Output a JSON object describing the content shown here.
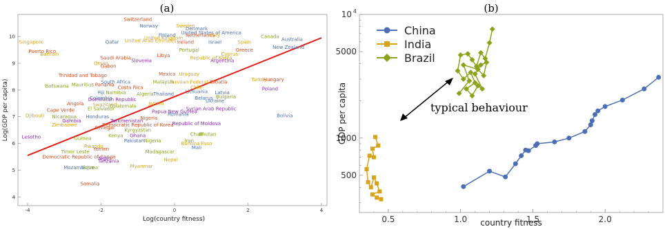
{
  "figure": {
    "label_a": "(a)",
    "label_b": "(b)"
  },
  "chart_data": [
    {
      "panel": "(a)",
      "type": "scatter",
      "xlabel": "Log(country fitness)",
      "ylabel": "Log(GDP per capita)",
      "xlim": [
        -4,
        4
      ],
      "ylim": [
        3.7,
        10.8
      ],
      "xticks": [
        -4,
        -2,
        0,
        2,
        4
      ],
      "yticks": [
        4,
        5,
        6,
        7,
        8,
        9,
        10
      ],
      "grid": false,
      "fit_line": {
        "color": "#e0201b",
        "x": [
          -4,
          4
        ],
        "y": [
          5.55,
          9.95
        ]
      },
      "points": [
        {
          "name": "Switzerland",
          "x": -1.0,
          "y": 10.65,
          "color": "#d84a1b"
        },
        {
          "name": "Norway",
          "x": -0.7,
          "y": 10.4,
          "color": "#4a6fb5"
        },
        {
          "name": "Sweden",
          "x": 0.3,
          "y": 10.4,
          "color": "#d8a31b"
        },
        {
          "name": "Denmark",
          "x": 0.6,
          "y": 10.3,
          "color": "#4a6fb5"
        },
        {
          "name": "United States of America",
          "x": 1.0,
          "y": 10.15,
          "color": "#4a6fb5"
        },
        {
          "name": "Netherlands",
          "x": 0.7,
          "y": 10.05,
          "color": "#d84a1b"
        },
        {
          "name": "Italy",
          "x": 1.1,
          "y": 10.05,
          "color": "#d8a31b"
        },
        {
          "name": "Canada",
          "x": 2.6,
          "y": 10.0,
          "color": "#8aa31b"
        },
        {
          "name": "Australia",
          "x": 3.2,
          "y": 9.9,
          "color": "#4a6fb5"
        },
        {
          "name": "Finland",
          "x": -0.2,
          "y": 10.05,
          "color": "#4a6fb5"
        },
        {
          "name": "United Kingdom",
          "x": -0.3,
          "y": 9.95,
          "color": "#d8a31b"
        },
        {
          "name": "United Arab Emirates",
          "x": -0.65,
          "y": 9.85,
          "color": "#d8a31b"
        },
        {
          "name": "Ireland",
          "x": 0.3,
          "y": 9.8,
          "color": "#d84a1b"
        },
        {
          "name": "Israel",
          "x": 1.1,
          "y": 9.8,
          "color": "#4a6fb5"
        },
        {
          "name": "Spain",
          "x": 1.9,
          "y": 9.8,
          "color": "#d8a31b"
        },
        {
          "name": "New Zealand",
          "x": 3.1,
          "y": 9.6,
          "color": "#4a6fb5"
        },
        {
          "name": "Singapore",
          "x": -3.9,
          "y": 9.8,
          "color": "#d8a31b"
        },
        {
          "name": "Qatar",
          "x": -1.7,
          "y": 9.8,
          "color": "#4a6fb5"
        },
        {
          "name": "Portugal",
          "x": 0.4,
          "y": 9.5,
          "color": "#8aa31b"
        },
        {
          "name": "Greece",
          "x": 1.9,
          "y": 9.5,
          "color": "#d84a1b"
        },
        {
          "name": "Cyprus",
          "x": 1.5,
          "y": 9.35,
          "color": "#d8a31b"
        },
        {
          "name": "Puerto Rico",
          "x": -3.6,
          "y": 9.45,
          "color": "#d84a1b"
        },
        {
          "name": "Bahrain",
          "x": -3.4,
          "y": 9.35,
          "color": "#d8a31b"
        },
        {
          "name": "Saudi Arabia",
          "x": -1.6,
          "y": 9.2,
          "color": "#d84a1b"
        },
        {
          "name": "Libya",
          "x": -0.3,
          "y": 9.3,
          "color": "#d84a1b"
        },
        {
          "name": "Republic of Korea",
          "x": 1.0,
          "y": 9.2,
          "color": "#d8a31b"
        },
        {
          "name": "Oman",
          "x": -2.0,
          "y": 9.0,
          "color": "#d8a31b"
        },
        {
          "name": "Gabon",
          "x": -1.8,
          "y": 8.9,
          "color": "#d84a1b"
        },
        {
          "name": "Slovenia",
          "x": -0.9,
          "y": 9.1,
          "color": "#8a2ab5"
        },
        {
          "name": "Argentina",
          "x": 1.3,
          "y": 9.1,
          "color": "#8a2ab5"
        },
        {
          "name": "Trinidad and Tobago",
          "x": -2.5,
          "y": 8.55,
          "color": "#d84a1b"
        },
        {
          "name": "Mexico",
          "x": -0.2,
          "y": 8.6,
          "color": "#d84a1b"
        },
        {
          "name": "Uruguay",
          "x": 0.4,
          "y": 8.6,
          "color": "#d8a31b"
        },
        {
          "name": "Turkey",
          "x": 2.3,
          "y": 8.4,
          "color": "#d8a31b"
        },
        {
          "name": "Hungary",
          "x": 2.7,
          "y": 8.4,
          "color": "#d84a1b"
        },
        {
          "name": "South Africa",
          "x": -1.6,
          "y": 8.3,
          "color": "#4a6fb5"
        },
        {
          "name": "Malaysia",
          "x": -0.3,
          "y": 8.3,
          "color": "#8aa31b"
        },
        {
          "name": "Russian Federation",
          "x": 0.5,
          "y": 8.3,
          "color": "#d8a31b"
        },
        {
          "name": "Croatia",
          "x": 1.2,
          "y": 8.3,
          "color": "#d84a1b"
        },
        {
          "name": "Mauritius",
          "x": -2.5,
          "y": 8.2,
          "color": "#8aa31b"
        },
        {
          "name": "Panama",
          "x": -1.9,
          "y": 8.2,
          "color": "#d84a1b"
        },
        {
          "name": "Botswana",
          "x": -3.2,
          "y": 8.15,
          "color": "#8aa31b"
        },
        {
          "name": "Costa Rica",
          "x": -1.2,
          "y": 8.1,
          "color": "#d84a1b"
        },
        {
          "name": "Chile",
          "x": 0.6,
          "y": 8.1,
          "color": "#d8a31b"
        },
        {
          "name": "Poland",
          "x": 2.6,
          "y": 8.05,
          "color": "#8a2ab5"
        },
        {
          "name": "Fiji",
          "x": -2.0,
          "y": 7.9,
          "color": "#4a6fb5"
        },
        {
          "name": "Namibia",
          "x": -1.6,
          "y": 7.9,
          "color": "#8aa31b"
        },
        {
          "name": "Algeria",
          "x": -0.8,
          "y": 7.85,
          "color": "#8aa31b"
        },
        {
          "name": "Thailand",
          "x": -0.3,
          "y": 7.85,
          "color": "#4a6fb5"
        },
        {
          "name": "Lithuania",
          "x": 0.6,
          "y": 7.95,
          "color": "#4a6fb5"
        },
        {
          "name": "Latvia",
          "x": 1.3,
          "y": 7.9,
          "color": "#4a6fb5"
        },
        {
          "name": "Colombia",
          "x": -2.0,
          "y": 7.7,
          "color": "#4a6fb5"
        },
        {
          "name": "Dominican Republic",
          "x": -1.7,
          "y": 7.65,
          "color": "#8a2ab5"
        },
        {
          "name": "Belarus",
          "x": 0.8,
          "y": 7.7,
          "color": "#4a6fb5"
        },
        {
          "name": "Bulgaria",
          "x": 1.4,
          "y": 7.75,
          "color": "#8aa31b"
        },
        {
          "name": "Ukraine",
          "x": 1.1,
          "y": 7.6,
          "color": "#4a6fb5"
        },
        {
          "name": "Angola",
          "x": -2.7,
          "y": 7.5,
          "color": "#d84a1b"
        },
        {
          "name": "Swaziland",
          "x": -1.9,
          "y": 7.45,
          "color": "#d8a31b"
        },
        {
          "name": "Guatemala",
          "x": -1.4,
          "y": 7.4,
          "color": "#8aa31b"
        },
        {
          "name": "Jordan",
          "x": -0.5,
          "y": 7.5,
          "color": "#d8a31b"
        },
        {
          "name": "El Salvador",
          "x": -2.0,
          "y": 7.3,
          "color": "#8aa31b"
        },
        {
          "name": "Cape Verde",
          "x": -3.1,
          "y": 7.25,
          "color": "#d84a1b"
        },
        {
          "name": "Syrian Arab Republic",
          "x": 1.0,
          "y": 7.3,
          "color": "#8a2ab5"
        },
        {
          "name": "Papua New Guinea",
          "x": 0.0,
          "y": 7.2,
          "color": "#8a2ab5"
        },
        {
          "name": "Romania",
          "x": 0.1,
          "y": 7.1,
          "color": "#4a6fb5"
        },
        {
          "name": "Djibouti",
          "x": -3.8,
          "y": 7.05,
          "color": "#d8a31b"
        },
        {
          "name": "Bolivia",
          "x": 3.0,
          "y": 7.05,
          "color": "#4a6fb5"
        },
        {
          "name": "Honduras",
          "x": -2.1,
          "y": 7.0,
          "color": "#4a6fb5"
        },
        {
          "name": "Nicaragua",
          "x": -3.0,
          "y": 7.0,
          "color": "#8aa31b"
        },
        {
          "name": "Gambia",
          "x": -2.8,
          "y": 6.85,
          "color": "#8a2ab5"
        },
        {
          "name": "Turkmenistan",
          "x": -1.3,
          "y": 6.85,
          "color": "#8a2ab5"
        },
        {
          "name": "Nigeria",
          "x": -0.7,
          "y": 6.95,
          "color": "#d84a1b"
        },
        {
          "name": "Zimbabwe",
          "x": -3.0,
          "y": 6.7,
          "color": "#d8a31b"
        },
        {
          "name": "Democratic Republic of Korea",
          "x": -1.0,
          "y": 6.7,
          "color": "#d84a1b"
        },
        {
          "name": "Republic of Moldova",
          "x": 0.6,
          "y": 6.75,
          "color": "#8a2ab5"
        },
        {
          "name": "Senegal",
          "x": -1.9,
          "y": 6.6,
          "color": "#d84a1b"
        },
        {
          "name": "Kyrgyzstan",
          "x": -1.0,
          "y": 6.5,
          "color": "#8aa31b"
        },
        {
          "name": "Lesotho",
          "x": -3.9,
          "y": 6.25,
          "color": "#8a2ab5"
        },
        {
          "name": "Guinea",
          "x": -2.5,
          "y": 6.2,
          "color": "#8aa31b"
        },
        {
          "name": "Kenya",
          "x": -1.6,
          "y": 6.3,
          "color": "#8aa31b"
        },
        {
          "name": "Ghana",
          "x": -1.0,
          "y": 6.3,
          "color": "#8a2ab5"
        },
        {
          "name": "Chad",
          "x": 0.6,
          "y": 6.35,
          "color": "#8aa31b"
        },
        {
          "name": "Bhutan",
          "x": 0.9,
          "y": 6.35,
          "color": "#8aa31b"
        },
        {
          "name": "Pakistan",
          "x": -1.1,
          "y": 6.1,
          "color": "#4a6fb5"
        },
        {
          "name": "Nigeria",
          "x": -0.6,
          "y": 6.1,
          "color": "#8aa31b"
        },
        {
          "name": "Iran",
          "x": 0.4,
          "y": 6.1,
          "color": "#8aa31b"
        },
        {
          "name": "Burkina Faso",
          "x": 0.6,
          "y": 6.0,
          "color": "#d8a31b"
        },
        {
          "name": "Mali",
          "x": 0.6,
          "y": 5.85,
          "color": "#4a6fb5"
        },
        {
          "name": "Rwanda",
          "x": -2.2,
          "y": 5.9,
          "color": "#d8a31b"
        },
        {
          "name": "Yemen",
          "x": -2.0,
          "y": 5.8,
          "color": "#d84a1b"
        },
        {
          "name": "Timor Leste",
          "x": -2.7,
          "y": 5.7,
          "color": "#8aa31b"
        },
        {
          "name": "Madagascar",
          "x": -0.4,
          "y": 5.7,
          "color": "#8aa31b"
        },
        {
          "name": "Democratic Republic of Congo",
          "x": -2.6,
          "y": 5.5,
          "color": "#d84a1b"
        },
        {
          "name": "Niger",
          "x": -1.9,
          "y": 5.45,
          "color": "#8a2ab5"
        },
        {
          "name": "Tanzania",
          "x": -1.8,
          "y": 5.35,
          "color": "#8a2ab5"
        },
        {
          "name": "Nepal",
          "x": -0.1,
          "y": 5.4,
          "color": "#d8a31b"
        },
        {
          "name": "Mozambique",
          "x": -2.6,
          "y": 5.1,
          "color": "#4a6fb5"
        },
        {
          "name": "Eritrea",
          "x": -2.3,
          "y": 5.1,
          "color": "#8aa31b"
        },
        {
          "name": "Myanmar",
          "x": -0.9,
          "y": 5.15,
          "color": "#d8a31b"
        },
        {
          "name": "Somalia",
          "x": -2.3,
          "y": 4.5,
          "color": "#d84a1b"
        }
      ]
    },
    {
      "panel": "(b)",
      "type": "line",
      "xlabel": "country fitness",
      "ylabel": "GDP per capita",
      "y_scale": "log",
      "xlim": [
        0.3,
        2.4
      ],
      "ylim": [
        250,
        10000
      ],
      "xticks": [
        0.5,
        1.0,
        1.5,
        2.0
      ],
      "yticks": [
        {
          "value": 500,
          "label": "500"
        },
        {
          "value": 1000,
          "label": "1000"
        },
        {
          "value": 5000,
          "label": "5000"
        }
      ],
      "ytick_top": {
        "value": 10000,
        "base": "10",
        "exp": "4"
      },
      "grid": false,
      "legend_position": "top-left",
      "series": [
        {
          "name": "China",
          "color": "#4a6fb5",
          "marker": "circle",
          "points": [
            [
              1.02,
              405
            ],
            [
              1.2,
              540
            ],
            [
              1.31,
              485
            ],
            [
              1.38,
              620
            ],
            [
              1.42,
              720
            ],
            [
              1.45,
              800
            ],
            [
              1.47,
              790
            ],
            [
              1.52,
              870
            ],
            [
              1.53,
              900
            ],
            [
              1.65,
              930
            ],
            [
              1.75,
              1000
            ],
            [
              1.86,
              1130
            ],
            [
              1.9,
              1280
            ],
            [
              1.91,
              1380
            ],
            [
              1.93,
              1550
            ],
            [
              1.95,
              1660
            ],
            [
              2.0,
              1800
            ],
            [
              2.12,
              2030
            ],
            [
              2.27,
              2500
            ],
            [
              2.37,
              3100
            ]
          ]
        },
        {
          "name": "India",
          "color": "#d8a31b",
          "marker": "square",
          "points": [
            [
              0.41,
              1020
            ],
            [
              0.43,
              870
            ],
            [
              0.39,
              820
            ],
            [
              0.4,
              700
            ],
            [
              0.37,
              720
            ],
            [
              0.35,
              560
            ],
            [
              0.36,
              440
            ],
            [
              0.38,
              400
            ],
            [
              0.4,
              480
            ],
            [
              0.42,
              430
            ],
            [
              0.44,
              370
            ],
            [
              0.39,
              350
            ],
            [
              0.42,
              330
            ],
            [
              0.45,
              320
            ]
          ]
        },
        {
          "name": "Brazil",
          "color": "#8aa31b",
          "marker": "diamond",
          "points": [
            [
              1.22,
              7600
            ],
            [
              1.2,
              5900
            ],
            [
              1.17,
              4400
            ],
            [
              1.14,
              4900
            ],
            [
              1.11,
              3800
            ],
            [
              1.08,
              4300
            ],
            [
              1.05,
              4800
            ],
            [
              1.0,
              4700
            ],
            [
              0.98,
              3500
            ],
            [
              1.02,
              3000
            ],
            [
              1.07,
              3400
            ],
            [
              1.1,
              2800
            ],
            [
              1.04,
              2500
            ],
            [
              1.08,
              2200
            ],
            [
              1.12,
              2650
            ],
            [
              1.15,
              2500
            ],
            [
              1.1,
              3300
            ],
            [
              1.14,
              3900
            ],
            [
              1.18,
              4100
            ],
            [
              1.16,
              3200
            ],
            [
              1.12,
              3600
            ],
            [
              1.02,
              3900
            ],
            [
              1.06,
              2900
            ],
            [
              0.99,
              2300
            ]
          ]
        }
      ],
      "annotations": [
        {
          "text": "typical behaviour"
        }
      ]
    }
  ]
}
